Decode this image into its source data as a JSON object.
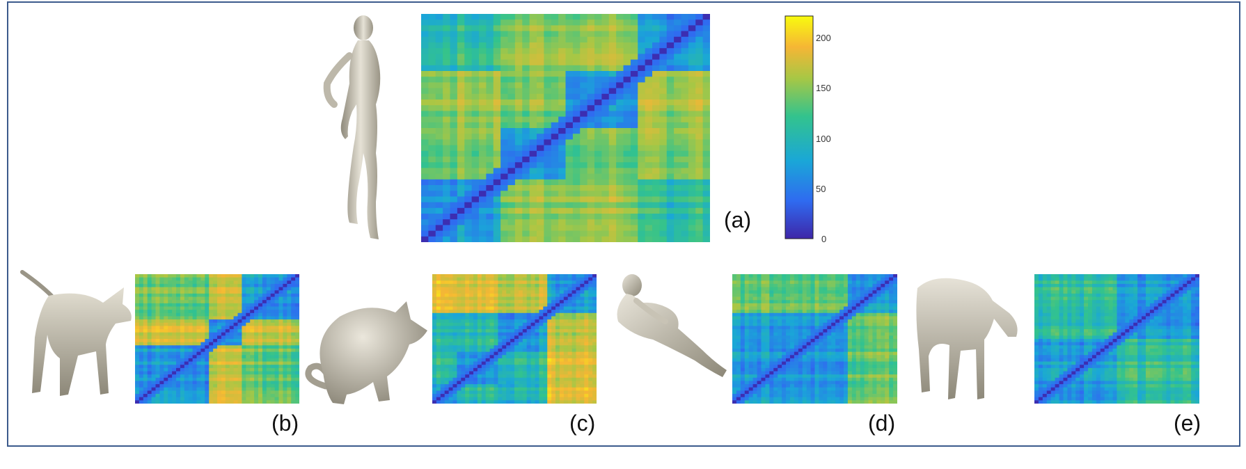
{
  "colorbar": {
    "ticks": [
      "0",
      "50",
      "100",
      "150",
      "200"
    ],
    "tick_values": [
      0,
      50,
      100,
      150,
      200
    ],
    "range": [
      0,
      220
    ],
    "colors": [
      "#3e26a8",
      "#2f6bf0",
      "#1aa7d7",
      "#33c38d",
      "#a7c745",
      "#f5b635",
      "#f9fb0e"
    ]
  },
  "panels": [
    {
      "id": "a",
      "label": "(a)",
      "shape": "human-figure-standing",
      "blocks": [
        0.27,
        0.22,
        0.26,
        0.25
      ]
    },
    {
      "id": "b",
      "label": "(b)",
      "shape": "dog",
      "blocks": [
        0.45,
        0.2,
        0.35
      ]
    },
    {
      "id": "c",
      "label": "(c)",
      "shape": "cat",
      "blocks": [
        0.15,
        0.25,
        0.3,
        0.3
      ]
    },
    {
      "id": "d",
      "label": "(d)",
      "shape": "human-figure-crouching",
      "blocks": [
        0.7,
        0.3
      ]
    },
    {
      "id": "e",
      "label": "(e)",
      "shape": "horse",
      "blocks": [
        0.5,
        0.5
      ]
    }
  ]
}
